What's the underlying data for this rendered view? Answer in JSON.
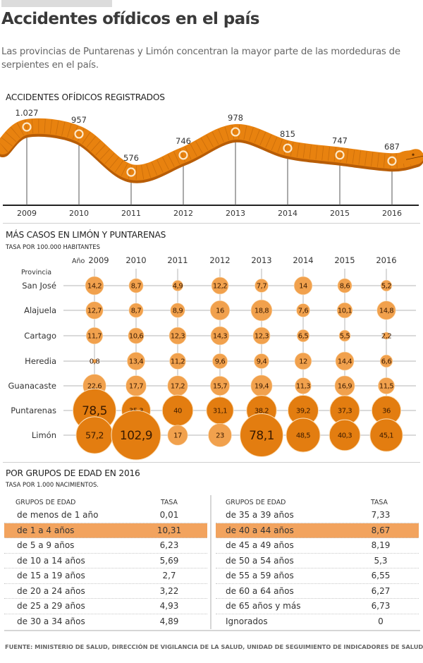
{
  "header": {
    "title": "Accidentes ofídicos en el país",
    "subtitle": "Las provincias de Puntarenas y Limón concentran la mayor parte de las mordeduras de serpientes en el país."
  },
  "colors": {
    "snake_body": "#e8820f",
    "snake_shadow": "#b85d06",
    "bubble_light": "#f1a14d",
    "bubble_dark": "#e37d10",
    "highlight_row": "#f2a35e",
    "grid": "#b5b5b5"
  },
  "chart_data": [
    {
      "type": "line",
      "title": "ACCIDENTES OFÍDICOS REGISTRADOS",
      "style": "snake-shaped line",
      "x": [
        "2009",
        "2010",
        "2011",
        "2012",
        "2013",
        "2014",
        "2015",
        "2016"
      ],
      "values": [
        1027,
        957,
        576,
        746,
        978,
        815,
        747,
        687
      ],
      "labels": [
        "1.027",
        "957",
        "576",
        "746",
        "978",
        "815",
        "747",
        "687"
      ],
      "xlabel": "",
      "ylabel": "",
      "grid": false
    },
    {
      "type": "scatter",
      "subtype": "bubble-grid",
      "title": "MÁS CASOS EN LIMÓN Y PUNTARENAS",
      "subtitle": "TASA POR 100.000 HABITANTES",
      "x_label": "Año",
      "y_label": "Provincia",
      "years": [
        "2009",
        "2010",
        "2011",
        "2012",
        "2013",
        "2014",
        "2015",
        "2016"
      ],
      "series": [
        {
          "name": "San José",
          "values": [
            14.2,
            8.7,
            4.9,
            12.2,
            7.7,
            14,
            8.6,
            5.2
          ],
          "labels": [
            "14,2",
            "8,7",
            "4,9",
            "12,2",
            "7,7",
            "14",
            "8,6",
            "5,2"
          ]
        },
        {
          "name": "Alajuela",
          "values": [
            12.7,
            8.7,
            8.9,
            16,
            18.8,
            7.6,
            10.1,
            14.8
          ],
          "labels": [
            "12,7",
            "8,7",
            "8,9",
            "16",
            "18,8",
            "7,6",
            "10,1",
            "14,8"
          ]
        },
        {
          "name": "Cartago",
          "values": [
            11.7,
            10.6,
            12.3,
            14.3,
            12.3,
            6.5,
            5.5,
            2.2
          ],
          "labels": [
            "11,7",
            "10,6",
            "12,3",
            "14,3",
            "12,3",
            "6,5",
            "5,5",
            "2,2"
          ]
        },
        {
          "name": "Heredia",
          "values": [
            0.8,
            13.4,
            11.2,
            9.6,
            9.4,
            12,
            14.4,
            6.6
          ],
          "labels": [
            "0,8",
            "13,4",
            "11,2",
            "9,6",
            "9,4",
            "12",
            "14,4",
            "6,6"
          ]
        },
        {
          "name": "Guanacaste",
          "values": [
            22.6,
            17.7,
            17.2,
            15.7,
            19.4,
            11.3,
            16.9,
            11.5
          ],
          "labels": [
            "22,6",
            "17,7",
            "17,2",
            "15,7",
            "19,4",
            "11,3",
            "16,9",
            "11,5"
          ]
        },
        {
          "name": "Puntarenas",
          "values": [
            78.5,
            35.3,
            40,
            31.1,
            38.2,
            39.2,
            37.3,
            36
          ],
          "labels": [
            "78,5",
            "35,3",
            "40",
            "31,1",
            "38,2",
            "39,2",
            "37,3",
            "36"
          ]
        },
        {
          "name": "Limón",
          "values": [
            57.2,
            102.9,
            17,
            23,
            78.1,
            48.5,
            40.3,
            45.1
          ],
          "labels": [
            "57,2",
            "102,9",
            "17",
            "23",
            "78,1",
            "48,5",
            "40,3",
            "45,1"
          ]
        }
      ]
    },
    {
      "type": "table",
      "title": "POR GRUPOS DE EDAD EN 2016",
      "subtitle": "TASA POR 1.000 NACIMIENTOS.",
      "columns": [
        "GRUPOS DE EDAD",
        "TASA"
      ],
      "left_rows": [
        {
          "group": "de menos de 1 año",
          "rate": "0,01",
          "highlight": false
        },
        {
          "group": "de 1 a 4 años",
          "rate": "10,31",
          "highlight": true
        },
        {
          "group": "de 5 a 9 años",
          "rate": "6,23",
          "highlight": false
        },
        {
          "group": "de 10 a 14 años",
          "rate": "5,69",
          "highlight": false
        },
        {
          "group": "de 15 a 19 años",
          "rate": "2,7",
          "highlight": false
        },
        {
          "group": "de 20 a 24 años",
          "rate": "3,22",
          "highlight": false
        },
        {
          "group": "de 25 a 29 años",
          "rate": "4,93",
          "highlight": false
        },
        {
          "group": "de 30 a 34 años",
          "rate": "4,89",
          "highlight": false
        }
      ],
      "right_rows": [
        {
          "group": "de 35 a 39 años",
          "rate": "7,33",
          "highlight": false
        },
        {
          "group": "de 40 a 44 años",
          "rate": "8,67",
          "highlight": true
        },
        {
          "group": "de 45 a 49 años",
          "rate": "8,19",
          "highlight": false
        },
        {
          "group": "de 50 a 54 años",
          "rate": "5,3",
          "highlight": false
        },
        {
          "group": "de 55 a 59 años",
          "rate": "6,55",
          "highlight": false
        },
        {
          "group": "de 60 a 64 años",
          "rate": "6,27",
          "highlight": false
        },
        {
          "group": "de 65 años y más",
          "rate": "6,73",
          "highlight": false
        },
        {
          "group": "Ignorados",
          "rate": "0",
          "highlight": false
        }
      ]
    }
  ],
  "sections": {
    "snake_title": "ACCIDENTES OFÍDICOS REGISTRADOS",
    "bubble_title": "MÁS CASOS EN LIMÓN Y PUNTARENAS",
    "bubble_sub": "TASA POR 100.000 HABITANTES",
    "age_title": "POR GRUPOS DE EDAD EN 2016",
    "age_sub": "TASA POR 1.000 NACIMIENTOS."
  },
  "footer": {
    "source": "FUENTE: MINISTERIO DE SALUD, DIRECCIÓN DE VIGILANCIA DE LA SALUD, UNIDAD DE SEGUIMIENTO DE INDICADORES DE SALUD."
  }
}
